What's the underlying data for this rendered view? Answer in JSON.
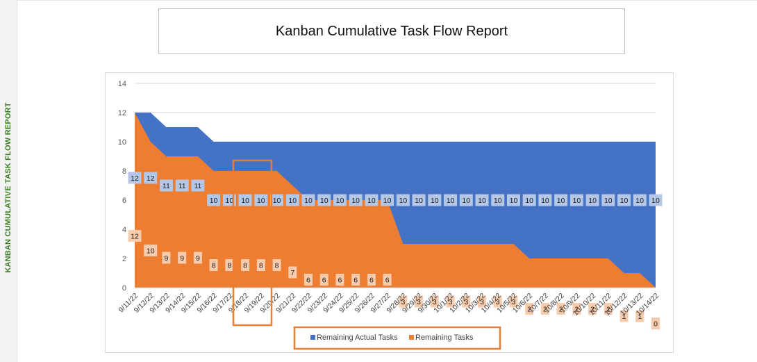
{
  "side_label": "KANBAN CUMULATIVE TASK FLOW REPORT",
  "title": "Kanban Cumulative Task Flow Report",
  "chart_data": {
    "type": "area",
    "title": "",
    "xlabel": "",
    "ylabel": "",
    "ylim": [
      0,
      14
    ],
    "yticks": [
      0,
      2,
      4,
      6,
      8,
      10,
      12,
      14
    ],
    "grid": true,
    "legend_position": "bottom",
    "categories": [
      "9/11/22",
      "9/12/22",
      "9/13/22",
      "9/14/22",
      "9/15/22",
      "9/16/22",
      "9/17/22",
      "9/18/22",
      "9/19/22",
      "9/20/22",
      "9/21/22",
      "9/22/22",
      "9/23/22",
      "9/24/22",
      "9/25/22",
      "9/26/22",
      "9/27/22",
      "9/28/22",
      "9/29/22",
      "9/30/22",
      "10/1/22",
      "10/2/22",
      "10/3/22",
      "10/4/22",
      "10/5/22",
      "10/6/22",
      "10/7/22",
      "10/8/22",
      "10/9/22",
      "10/10/22",
      "10/11/22",
      "10/12/22",
      "10/13/22",
      "10/14/22"
    ],
    "series": [
      {
        "name": "Remaining Actual Tasks",
        "color": "#4472c4",
        "label_bg": "#b4c7e7",
        "values": [
          12,
          12,
          11,
          11,
          11,
          10,
          10,
          10,
          10,
          10,
          10,
          10,
          10,
          10,
          10,
          10,
          10,
          10,
          10,
          10,
          10,
          10,
          10,
          10,
          10,
          10,
          10,
          10,
          10,
          10,
          10,
          10,
          10,
          10
        ]
      },
      {
        "name": "Remaining Tasks",
        "color": "#ed7d31",
        "label_bg": "#f8cbad",
        "values": [
          12,
          10,
          9,
          9,
          9,
          8,
          8,
          8,
          8,
          8,
          7,
          6,
          6,
          6,
          6,
          6,
          6,
          3,
          3,
          3,
          3,
          3,
          3,
          3,
          3,
          2,
          2,
          2,
          2,
          2,
          2,
          1,
          1,
          0
        ]
      }
    ]
  }
}
